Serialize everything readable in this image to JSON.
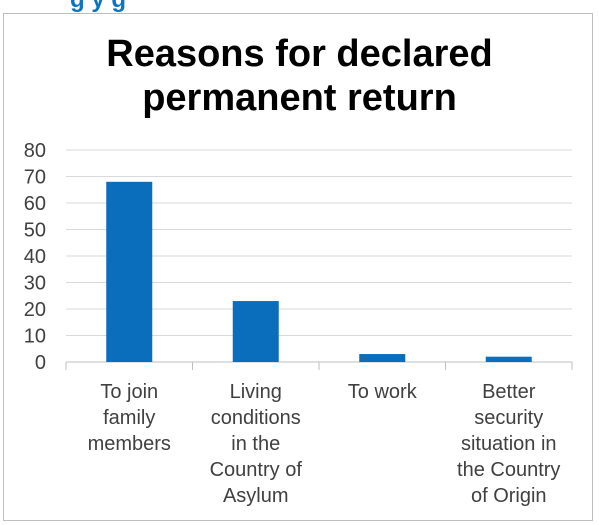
{
  "header_strip": {
    "text": "g                     y                       g"
  },
  "chart_data": {
    "type": "bar",
    "title_line1": "Reasons for declared",
    "title_line2": "permanent return",
    "categories": [
      [
        "To join",
        "family",
        "members"
      ],
      [
        "Living",
        "conditions",
        "in the",
        "Country of",
        "Asylum"
      ],
      [
        "To work"
      ],
      [
        "Better",
        "security",
        "situation in",
        "the Country",
        "of Origin"
      ]
    ],
    "values": [
      68,
      23,
      3,
      2
    ],
    "ylim": [
      0,
      80
    ],
    "yticks": [
      0,
      10,
      20,
      30,
      40,
      50,
      60,
      70,
      80
    ],
    "grid": true,
    "bar_color": "#0a6ebd",
    "grid_color": "#d9d9d9"
  }
}
